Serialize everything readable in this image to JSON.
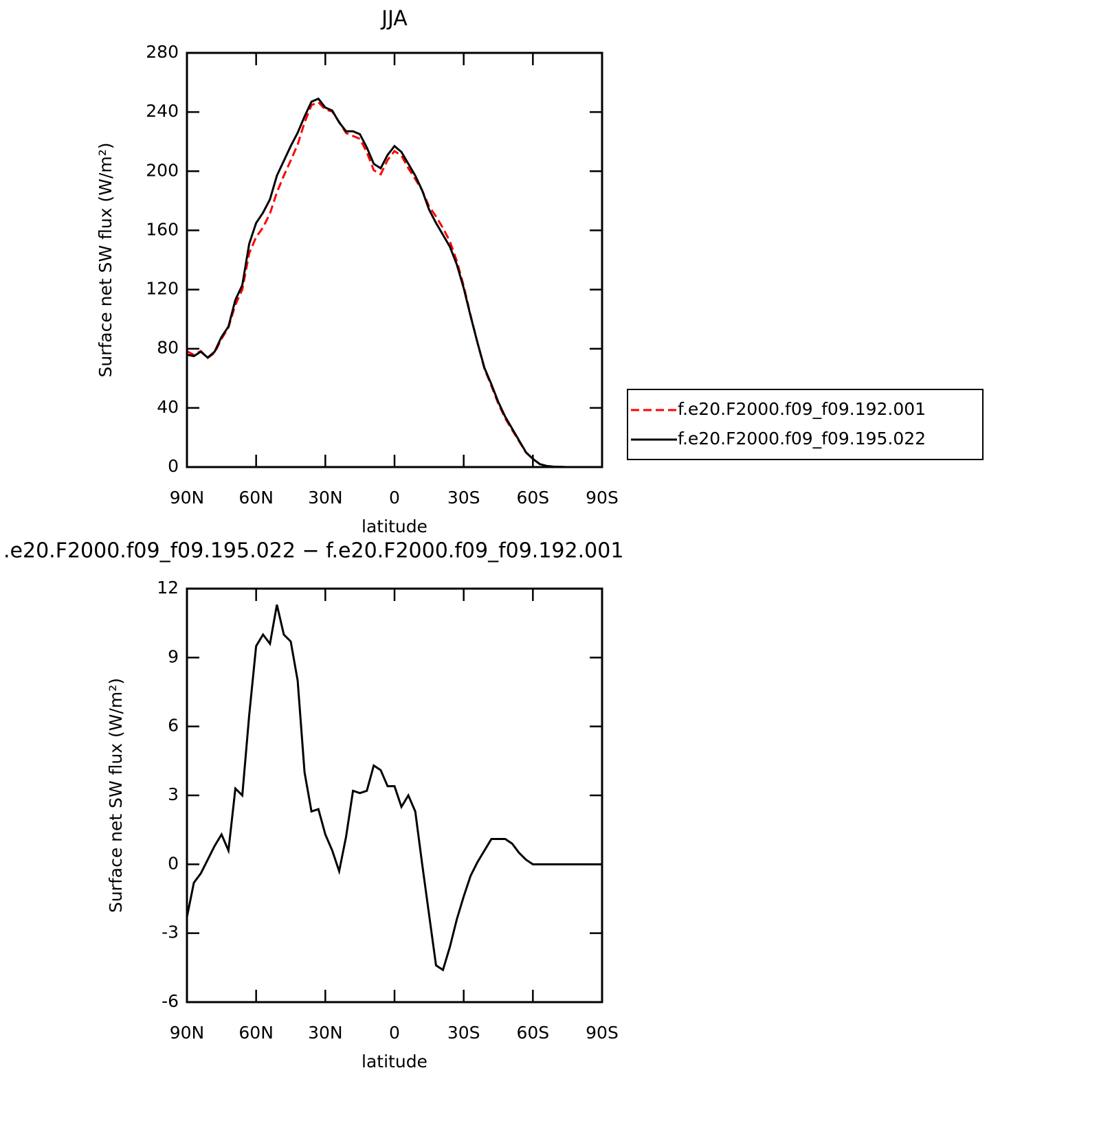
{
  "chart_data": [
    {
      "type": "line",
      "title": "JJA",
      "ylabel": "Surface net SW flux (W/m²)",
      "xlabel": "latitude",
      "x": [
        90,
        87,
        84,
        81,
        78,
        75,
        72,
        69,
        66,
        63,
        60,
        57,
        54,
        51,
        48,
        45,
        42,
        39,
        36,
        33,
        30,
        27,
        24,
        21,
        18,
        15,
        12,
        9,
        6,
        3,
        0,
        -3,
        -6,
        -9,
        -12,
        -15,
        -18,
        -21,
        -24,
        -27,
        -30,
        -33,
        -36,
        -39,
        -42,
        -45,
        -48,
        -51,
        -54,
        -57,
        -60,
        -63,
        -66,
        -69,
        -72,
        -75,
        -78,
        -81,
        -84,
        -87,
        -90
      ],
      "series": [
        {
          "name": "f.e20.F2000.f09_f09.192.001",
          "color": "#ff0000",
          "dash": true,
          "values": [
            78.3,
            75.8,
            78.4,
            73.8,
            77.2,
            86.7,
            94.4,
            109.7,
            120,
            144.5,
            155.5,
            162,
            171.4,
            185.7,
            197,
            207.3,
            218,
            233,
            244.7,
            246.6,
            241.7,
            240.4,
            233.3,
            225.8,
            223.8,
            221.9,
            212.8,
            200.7,
            197.9,
            207.6,
            213.6,
            210.5,
            202,
            194.7,
            187,
            176.2,
            169.4,
            161.6,
            152.6,
            139.4,
            122.4,
            102.5,
            83.9,
            66.4,
            54.9,
            42.9,
            32.9,
            25.1,
            17.5,
            9.8,
            5.5,
            2,
            0.7,
            0.3,
            0.1,
            0,
            0,
            0,
            0,
            0,
            0
          ]
        },
        {
          "name": "f.e20.F2000.f09_f09.195.022",
          "color": "#000000",
          "dash": false,
          "values": [
            76,
            75,
            78,
            74,
            78,
            88,
            95,
            113,
            123,
            151,
            165,
            172,
            181,
            197,
            207,
            217,
            226,
            237,
            247,
            249,
            243,
            241,
            233,
            227,
            227,
            225,
            216,
            205,
            202,
            211,
            217,
            213,
            205,
            197,
            187,
            174,
            165,
            157,
            149,
            137,
            121,
            102,
            84,
            67,
            56,
            44,
            34,
            26,
            18,
            10,
            5.5,
            2,
            0.7,
            0.3,
            0.1,
            0,
            0,
            0,
            0,
            0,
            0
          ]
        }
      ],
      "xlim": [
        90,
        -90
      ],
      "xticks": [
        {
          "value": 90,
          "label": "90N"
        },
        {
          "value": 60,
          "label": "60N"
        },
        {
          "value": 30,
          "label": "30N"
        },
        0,
        {
          "value": -30,
          "label": "30S"
        },
        {
          "value": -60,
          "label": "60S"
        },
        {
          "value": -90,
          "label": "90S"
        }
      ],
      "ylim": [
        0,
        280
      ],
      "yticks": [
        0,
        40,
        80,
        120,
        160,
        200,
        240,
        280
      ],
      "legend": "right"
    },
    {
      "type": "line",
      "title": ".e20.F2000.f09_f09.195.022 − f.e20.F2000.f09_f09.192.001",
      "ylabel": "Surface net SW flux (W/m²)",
      "xlabel": "latitude",
      "x": [
        90,
        87,
        84,
        81,
        78,
        75,
        72,
        69,
        66,
        63,
        60,
        57,
        54,
        51,
        48,
        45,
        42,
        39,
        36,
        33,
        30,
        27,
        24,
        21,
        18,
        15,
        12,
        9,
        6,
        3,
        0,
        -3,
        -6,
        -9,
        -12,
        -15,
        -18,
        -21,
        -24,
        -27,
        -30,
        -33,
        -36,
        -39,
        -42,
        -45,
        -48,
        -51,
        -54,
        -57,
        -60,
        -63,
        -66,
        -69,
        -72,
        -75,
        -78,
        -81,
        -84,
        -87,
        -90
      ],
      "series": [
        {
          "color": "#000000",
          "dash": false,
          "values": [
            -2.3,
            -0.8,
            -0.4,
            0.2,
            0.8,
            1.3,
            0.6,
            3.3,
            3.0,
            6.5,
            9.5,
            10.0,
            9.6,
            11.3,
            10.0,
            9.7,
            8.0,
            4.0,
            2.3,
            2.4,
            1.3,
            0.6,
            -0.3,
            1.2,
            3.2,
            3.1,
            3.2,
            4.3,
            4.1,
            3.4,
            3.4,
            2.5,
            3.0,
            2.3,
            0.0,
            -2.2,
            -4.4,
            -4.6,
            -3.6,
            -2.4,
            -1.4,
            -0.5,
            0.1,
            0.6,
            1.1,
            1.1,
            1.1,
            0.9,
            0.5,
            0.2,
            0,
            0,
            0,
            0,
            0,
            0,
            0,
            0,
            0,
            0,
            0
          ]
        }
      ],
      "xlim": [
        90,
        -90
      ],
      "xticks": [
        {
          "value": 90,
          "label": "90N"
        },
        {
          "value": 60,
          "label": "60N"
        },
        {
          "value": 30,
          "label": "30N"
        },
        0,
        {
          "value": -30,
          "label": "30S"
        },
        {
          "value": -60,
          "label": "60S"
        },
        {
          "value": -90,
          "label": "90S"
        }
      ],
      "ylim": [
        -6,
        12
      ],
      "yticks": [
        -6,
        -3,
        0,
        3,
        6,
        9,
        12
      ]
    }
  ]
}
